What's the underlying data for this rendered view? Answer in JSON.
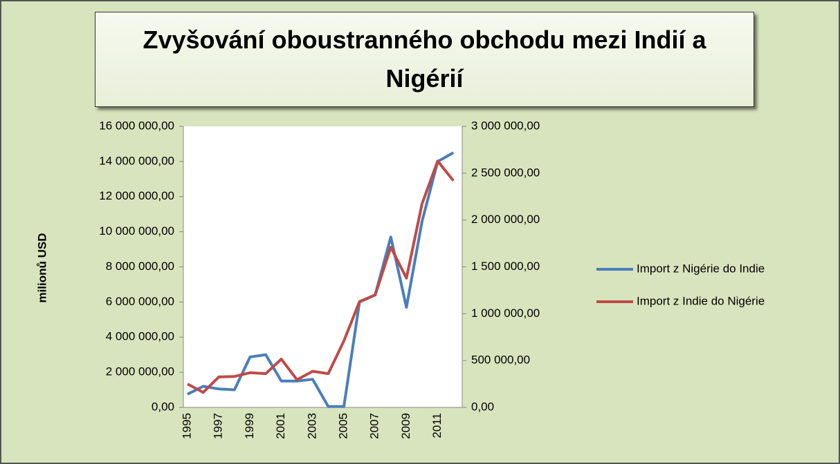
{
  "chart_data": {
    "type": "line",
    "title": "Zvyšování oboustranného obchodu mezi Indií a Nigérií",
    "y_label": "milionů USD",
    "categories": [
      "1995",
      null,
      "1997",
      null,
      "1999",
      null,
      "2001",
      null,
      "2003",
      null,
      "2005",
      null,
      "2007",
      null,
      "2009",
      null,
      "2011",
      null
    ],
    "series": [
      {
        "name": "Import z Nigérie do Indie",
        "color": "#4a7ebb",
        "values": [
          750000,
          1200000,
          1050000,
          1000000,
          2870000,
          3000000,
          1500000,
          1500000,
          1600000,
          50000,
          50000,
          6000000,
          6400000,
          9700000,
          5700000,
          10600000,
          14000000,
          14500000
        ]
      },
      {
        "name": "Import z Indie do Nigérie",
        "color": "#be4b48",
        "axis": "y2",
        "values": [
          250000,
          160000,
          325000,
          330000,
          370000,
          360000,
          515000,
          295000,
          385000,
          360000,
          710000,
          1130000,
          1200000,
          1710000,
          1380000,
          2175000,
          2630000,
          2420000
        ]
      }
    ],
    "ylim": [
      0,
      16000000
    ],
    "yticks": [
      {
        "value": 0,
        "label": "0,00"
      },
      {
        "value": 2000000,
        "label": "2 000 000,00"
      },
      {
        "value": 4000000,
        "label": "4 000 000,00"
      },
      {
        "value": 6000000,
        "label": "6 000 000,00"
      },
      {
        "value": 8000000,
        "label": "8 000 000,00"
      },
      {
        "value": 10000000,
        "label": "10 000 000,00"
      },
      {
        "value": 12000000,
        "label": "12 000 000,00"
      },
      {
        "value": 14000000,
        "label": "14 000 000,00"
      },
      {
        "value": 16000000,
        "label": "16 000 000,00"
      }
    ],
    "y2lim": [
      0,
      3000000
    ],
    "y2ticks": [
      {
        "value": 0,
        "label": "0,00"
      },
      {
        "value": 500000,
        "label": "500 000,00"
      },
      {
        "value": 1000000,
        "label": "1 000 000,00"
      },
      {
        "value": 1500000,
        "label": "1 500 000,00"
      },
      {
        "value": 2000000,
        "label": "2 000 000,00"
      },
      {
        "value": 2500000,
        "label": "2 500 000,00"
      },
      {
        "value": 3000000,
        "label": "3 000 000,00"
      }
    ],
    "legend": "right",
    "grid": false
  }
}
